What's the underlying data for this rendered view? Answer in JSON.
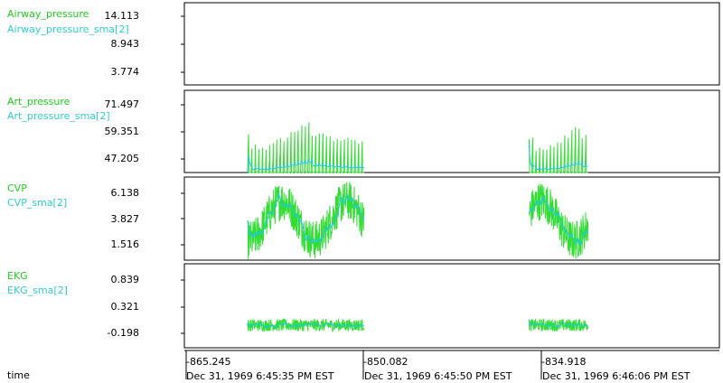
{
  "chart_data": {
    "type": "line",
    "x_label": "time",
    "x_ticks": [
      {
        "value": "-865.245",
        "date": "Dec 31, 1969 6:45:35 PM EST"
      },
      {
        "value": "-850.082",
        "date": "Dec 31, 1969 6:45:50 PM EST"
      },
      {
        "value": "-834.918",
        "date": "Dec 31, 1969 6:46:06 PM EST"
      }
    ],
    "x_range": [
      -866.4,
      -826.5
    ],
    "segments": [
      [
        -861.7,
        -853.0
      ],
      [
        -840.7,
        -836.3
      ]
    ],
    "colors": {
      "main": "#33dd33",
      "sma": "#22cccc"
    },
    "panels": [
      {
        "key": "airway",
        "series": [
          {
            "name": "Airway_pressure"
          },
          {
            "name": "Airway_pressure_sma[2]"
          }
        ],
        "yticks": [
          "14.113",
          "8.943",
          "3.774"
        ],
        "yrange": [
          1.5,
          16.5
        ]
      },
      {
        "key": "art",
        "series": [
          {
            "name": "Art_pressure"
          },
          {
            "name": "Art_pressure_sma[2]"
          }
        ],
        "yticks": [
          "71.497",
          "59.351",
          "47.205"
        ],
        "yrange": [
          40,
          76
        ]
      },
      {
        "key": "cvp",
        "series": [
          {
            "name": "CVP"
          },
          {
            "name": "CVP_sma[2]"
          }
        ],
        "yticks": [
          "6.138",
          "3.827",
          "1.516"
        ],
        "yrange": [
          0.6,
          7.3
        ]
      },
      {
        "key": "ekg",
        "series": [
          {
            "name": "EKG"
          },
          {
            "name": "EKG_sma[2]"
          }
        ],
        "yticks": [
          "0.839",
          "0.321",
          "-0.198"
        ],
        "yrange": [
          -0.42,
          0.95
        ]
      }
    ]
  }
}
